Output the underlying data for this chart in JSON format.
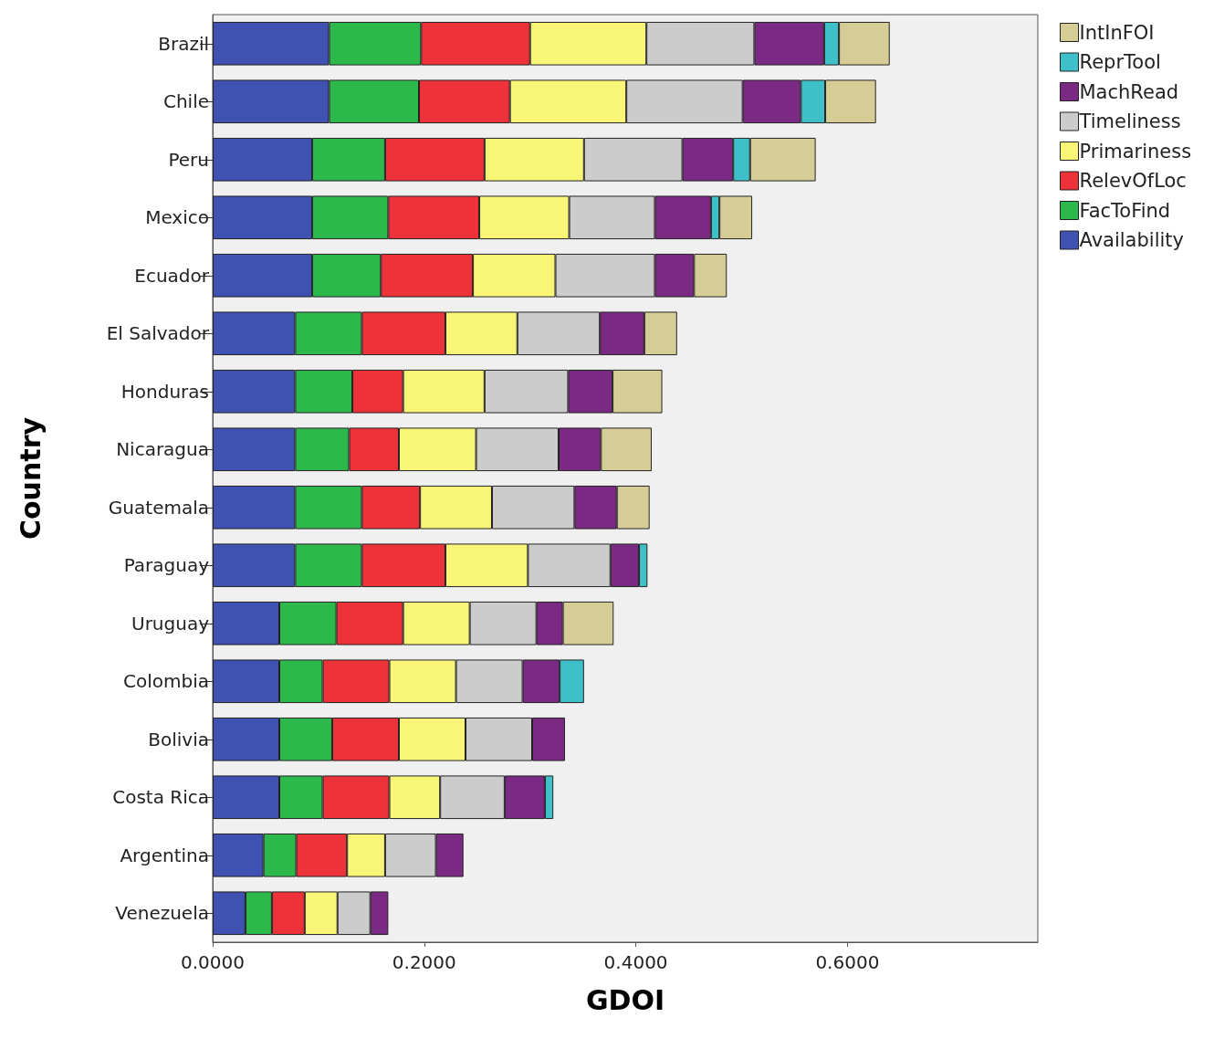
{
  "chart_data": {
    "type": "bar",
    "orientation": "horizontal",
    "stacked": true,
    "xlabel": "GDOI",
    "ylabel": "Country",
    "categories": [
      "Brazil",
      "Chile",
      "Peru",
      "Mexico",
      "Ecuador",
      "El Salvador",
      "Honduras",
      "Nicaragua",
      "Guatemala",
      "Paraguay",
      "Uruguay",
      "Colombia",
      "Bolivia",
      "Costa Rica",
      "Argentina",
      "Venezuela"
    ],
    "series": [
      {
        "name": "Availability",
        "color": "#3f51b1",
        "values": [
          0.11,
          0.11,
          0.094,
          0.094,
          0.094,
          0.078,
          0.078,
          0.078,
          0.078,
          0.078,
          0.063,
          0.063,
          0.063,
          0.063,
          0.048,
          0.031
        ]
      },
      {
        "name": "FacToFind",
        "color": "#2db84c",
        "values": [
          0.087,
          0.085,
          0.069,
          0.072,
          0.065,
          0.063,
          0.054,
          0.051,
          0.063,
          0.063,
          0.054,
          0.041,
          0.05,
          0.041,
          0.031,
          0.025
        ]
      },
      {
        "name": "RelevOfLoc",
        "color": "#ee3239",
        "values": [
          0.103,
          0.086,
          0.094,
          0.086,
          0.087,
          0.079,
          0.048,
          0.047,
          0.055,
          0.079,
          0.063,
          0.063,
          0.063,
          0.063,
          0.048,
          0.031
        ]
      },
      {
        "name": "Primariness",
        "color": "#f9f576",
        "values": [
          0.11,
          0.11,
          0.094,
          0.085,
          0.078,
          0.068,
          0.077,
          0.073,
          0.068,
          0.078,
          0.063,
          0.063,
          0.063,
          0.048,
          0.036,
          0.031
        ]
      },
      {
        "name": "Timeliness",
        "color": "#cccccc",
        "values": [
          0.102,
          0.11,
          0.093,
          0.081,
          0.094,
          0.078,
          0.079,
          0.078,
          0.078,
          0.078,
          0.063,
          0.063,
          0.063,
          0.061,
          0.048,
          0.031
        ]
      },
      {
        "name": "MachRead",
        "color": "#7b2a84",
        "values": [
          0.066,
          0.055,
          0.048,
          0.053,
          0.037,
          0.042,
          0.042,
          0.04,
          0.04,
          0.027,
          0.025,
          0.035,
          0.031,
          0.038,
          0.026,
          0.017
        ]
      },
      {
        "name": "ReprTool",
        "color": "#3fbfc7",
        "values": [
          0.014,
          0.023,
          0.016,
          0.008,
          null,
          null,
          null,
          null,
          null,
          0.008,
          null,
          0.023,
          null,
          0.008,
          null,
          null
        ]
      },
      {
        "name": "IntInFOI",
        "color": "#d6cd96",
        "values": [
          0.048,
          0.048,
          0.062,
          0.031,
          0.031,
          0.031,
          0.047,
          0.048,
          0.031,
          null,
          0.048,
          null,
          null,
          null,
          null,
          null
        ]
      }
    ],
    "xlim": [
      0,
      0.78
    ],
    "xticks": [
      {
        "value": 0,
        "label": "0.0000"
      },
      {
        "value": 0.2,
        "label": "0.2000"
      },
      {
        "value": 0.4,
        "label": "0.4000"
      },
      {
        "value": 0.6,
        "label": "0.6000"
      }
    ],
    "grid": false,
    "legend": "top right"
  }
}
